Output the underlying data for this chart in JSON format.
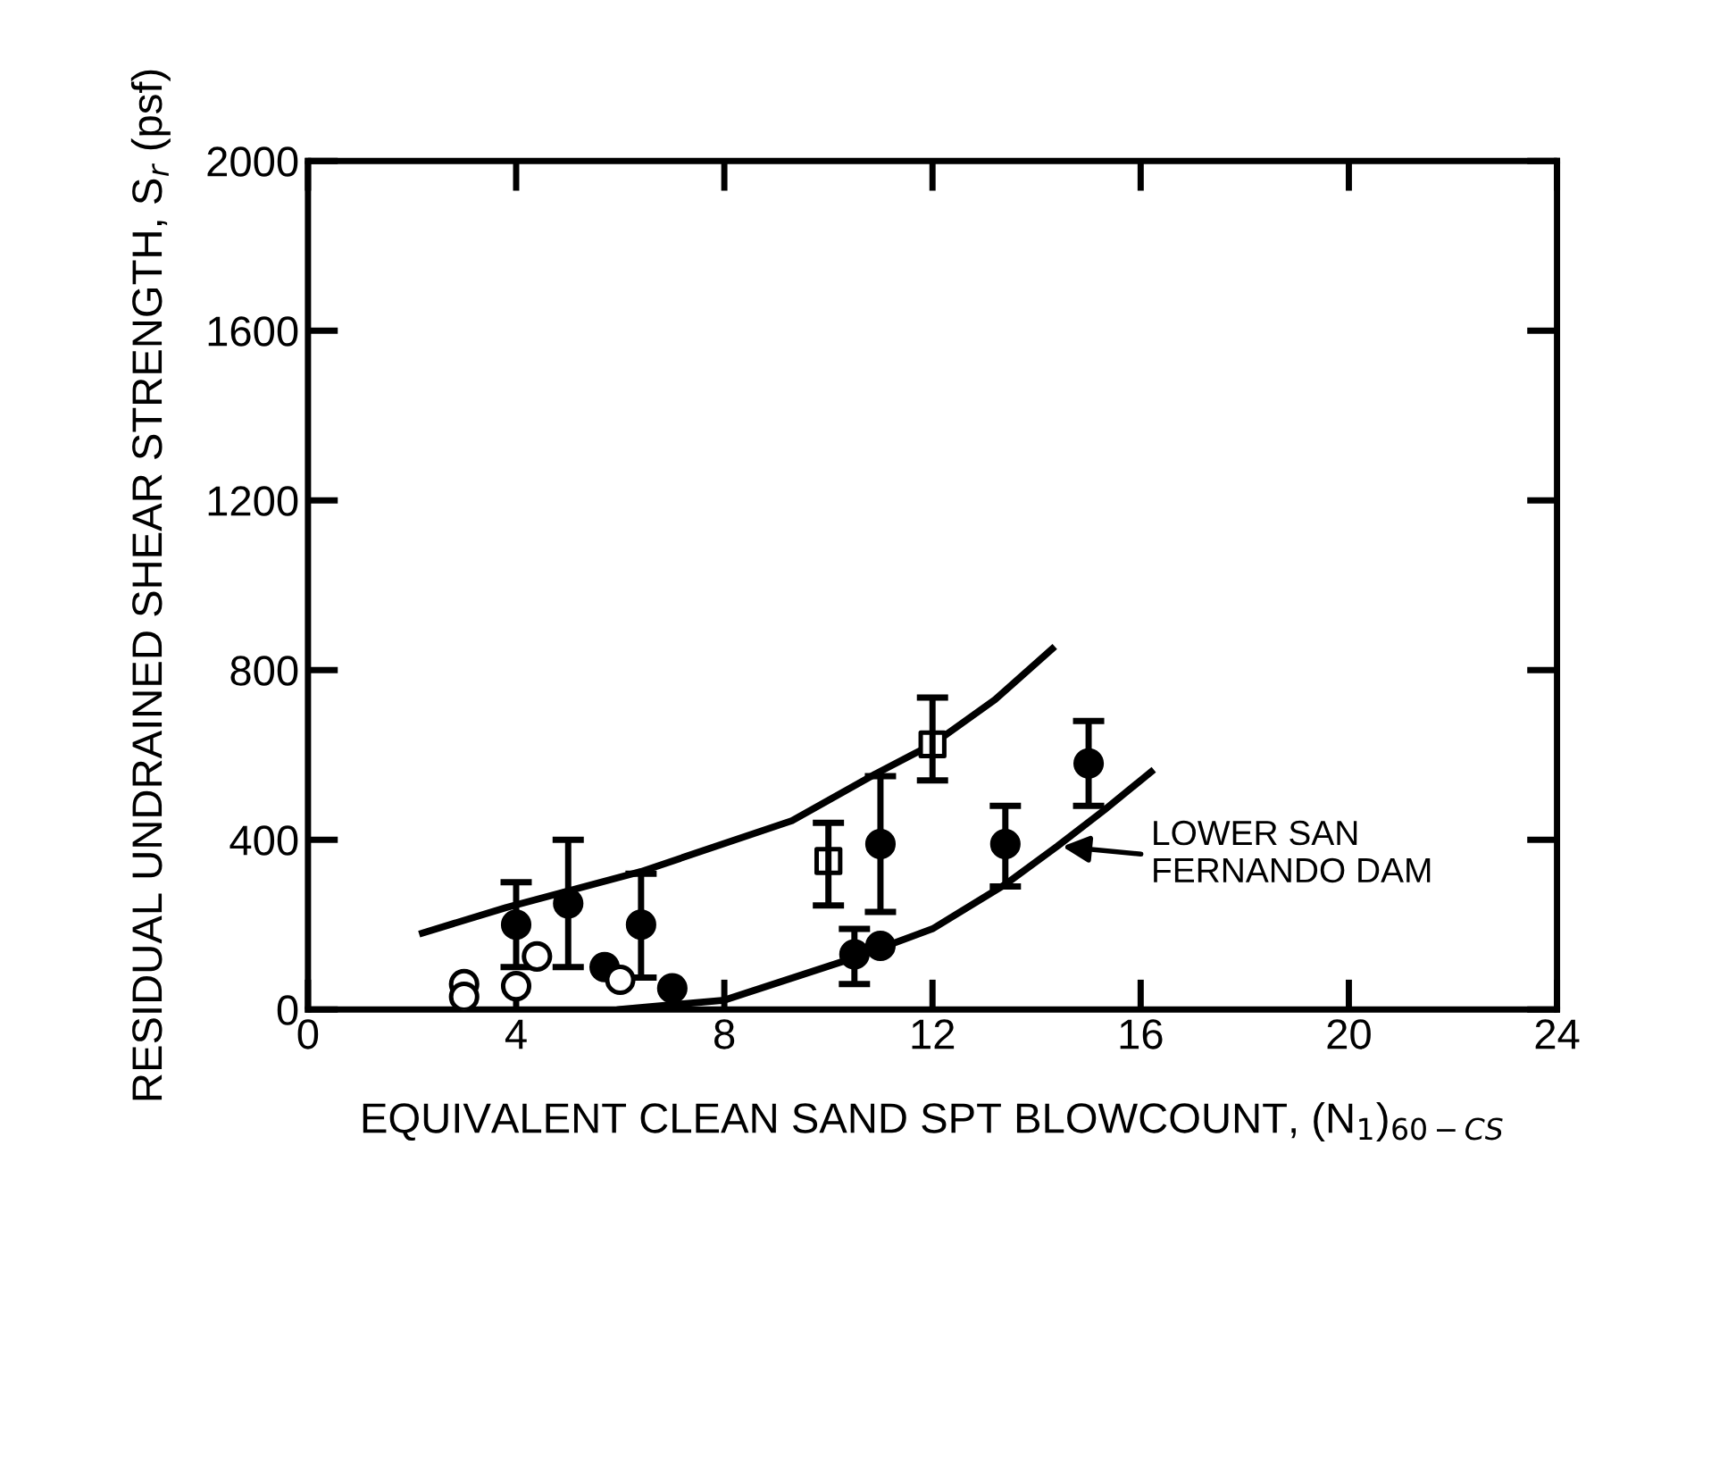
{
  "chart_data": {
    "type": "scatter",
    "xlabel": "EQUIVALENT CLEAN SAND SPT BLOWCOUNT, (N$_{1}$)$_{60−CS}$",
    "ylabel": "RESIDUAL UNDRAINED SHEAR STRENGTH, S$_{r}$ (psf)",
    "xlim": [
      0,
      24
    ],
    "xticks": [
      0,
      4,
      8,
      12,
      16,
      20,
      24
    ],
    "ylim": [
      0,
      2000
    ],
    "yticks": [
      0,
      400,
      800,
      1200,
      1600,
      2000
    ],
    "grid": false,
    "legend": false,
    "series": [
      {
        "marker": "circle",
        "color": "#000000",
        "x": [
          4.0,
          5.0,
          6.4,
          5.7,
          7.0,
          11.0,
          10.5,
          11.0,
          13.4,
          15.0
        ],
        "values": [
          200,
          250,
          200,
          100,
          50,
          390,
          130,
          150,
          390,
          580
        ],
        "errors": [
          [
            100,
            300
          ],
          [
            100,
            400
          ],
          [
            75,
            320
          ],
          null,
          null,
          [
            230,
            550
          ],
          [
            60,
            190
          ],
          null,
          [
            290,
            480
          ],
          [
            480,
            680
          ]
        ]
      },
      {
        "marker": "circle",
        "color": "#ffffff",
        "x": [
          4.4,
          6.0,
          4.0,
          3.0,
          3.0
        ],
        "values": [
          125,
          70,
          55,
          60,
          30
        ]
      },
      {
        "marker": "square",
        "color": "#ffffff",
        "x": [
          10.0,
          12.0
        ],
        "values": [
          350,
          625
        ],
        "errors": [
          [
            245,
            440
          ],
          [
            540,
            735
          ]
        ]
      },
      {
        "type": "line",
        "marker": "none",
        "line_style": "solid",
        "color": "#000000",
        "x": [
          2.2,
          3.8,
          6.4,
          9.3,
          10.9,
          12.0,
          13.2,
          14.3
        ],
        "values": [
          180,
          240,
          325,
          445,
          555,
          625,
          730,
          850
        ]
      },
      {
        "type": "line",
        "marker": "none",
        "line_style": "solid",
        "color": "#000000",
        "x": [
          6.0,
          8.0,
          10.5,
          12.0,
          13.4,
          14.4,
          15.3,
          16.2
        ],
        "values": [
          0,
          22,
          122,
          190,
          295,
          385,
          470,
          560
        ]
      }
    ],
    "annotations": [
      {
        "text": "LOWER SAN\nFERNANDO DAM",
        "x": 14.4,
        "y": 385
      }
    ]
  }
}
